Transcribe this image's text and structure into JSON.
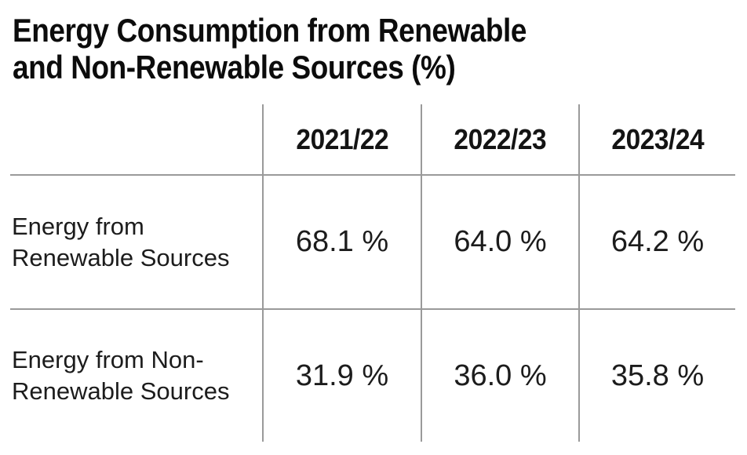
{
  "title": {
    "line1": "Energy Consumption from Renewable",
    "line2": "and Non-Renewable Sources (%)"
  },
  "table": {
    "column_headers": [
      "2021/22",
      "2022/23",
      "2023/24"
    ],
    "rows": [
      {
        "label_lines": [
          "Energy from",
          "Renewable Sources"
        ],
        "values": [
          "68.1 %",
          "64.0 %",
          "64.2 %"
        ]
      },
      {
        "label_lines": [
          "Energy from Non-",
          "Renewable Sources"
        ],
        "values": [
          "31.9 %",
          "36.0 %",
          "35.8 %"
        ]
      }
    ]
  },
  "colors": {
    "grid_line": "#9a9a9a",
    "text": "#1c1c1c",
    "title_text": "#0c0c0c",
    "background": "#ffffff"
  },
  "chart_data": {
    "type": "table",
    "title": "Energy Consumption from Renewable and Non-Renewable Sources (%)",
    "categories": [
      "2021/22",
      "2022/23",
      "2023/24"
    ],
    "series": [
      {
        "name": "Energy from Renewable Sources",
        "values": [
          68.1,
          64.0,
          64.2
        ]
      },
      {
        "name": "Energy from Non-Renewable Sources",
        "values": [
          31.9,
          36.0,
          35.8
        ]
      }
    ],
    "unit": "%",
    "layout": "rows are series, columns are fiscal years, grid lines gray, no outer border"
  }
}
